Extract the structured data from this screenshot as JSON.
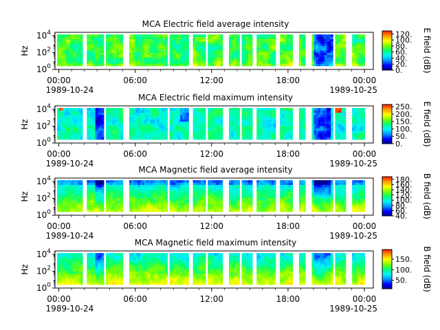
{
  "figure": {
    "colors": {
      "background": "#ffffff",
      "axis": "#000000",
      "colormap": [
        "#00008c",
        "#0000ff",
        "#0096ff",
        "#00f5f5",
        "#00ff78",
        "#78ff00",
        "#ffff00",
        "#ffa000",
        "#ff2000"
      ]
    },
    "time_axis": {
      "ticks": [
        "00:00",
        "06:00",
        "12:00",
        "18:00",
        "00:00"
      ],
      "start_date": "1989-10-24",
      "end_date": "1989-10-25",
      "range_hours": [
        -0.3,
        24.7
      ]
    },
    "y_axis": {
      "label": "Hz",
      "scale": "log",
      "range_log10": [
        0,
        4.4
      ],
      "tick_exponents": [
        0,
        2,
        4
      ]
    },
    "data_gaps_hours": [
      [
        1.9,
        2.2
      ],
      [
        3.55,
        3.7
      ],
      [
        5.1,
        5.6
      ],
      [
        8.55,
        8.75
      ],
      [
        10.2,
        10.55
      ],
      [
        11.5,
        11.65
      ],
      [
        12.9,
        13.3
      ],
      [
        14.15,
        14.3
      ],
      [
        15.2,
        15.6
      ],
      [
        17.1,
        17.35
      ],
      [
        18.45,
        18.8
      ],
      [
        19.35,
        19.85
      ],
      [
        21.5,
        21.75
      ],
      [
        22.55,
        23.1
      ]
    ],
    "coverage_hours": [
      -0.1,
      24.0
    ],
    "panels": [
      {
        "title": "MCA  Electric field average intensity",
        "cbar_label": "E field (dB)",
        "cbar_range": [
          0,
          130
        ],
        "cbar_ticks": [
          "0.",
          "20.",
          "40.",
          "60.",
          "80.",
          "100.",
          "120."
        ],
        "style": "e-avg"
      },
      {
        "title": "MCA  Electric field maximum intensity",
        "cbar_label": "E field (dB)",
        "cbar_range": [
          0,
          265
        ],
        "cbar_ticks": [
          "0.",
          "50.",
          "100.",
          "150.",
          "200.",
          "250."
        ],
        "style": "e-max"
      },
      {
        "title": "MCA  Magnetic field average intensity",
        "cbar_label": "B field (dB)",
        "cbar_range": [
          40,
          190
        ],
        "cbar_ticks": [
          "40.",
          "60.",
          "80.",
          "100.",
          "120.",
          "140.",
          "160.",
          "180."
        ],
        "style": "b-avg"
      },
      {
        "title": "MCA  Magnetic field maximum intensity",
        "cbar_label": "B field (dB)",
        "cbar_range": [
          10,
          195
        ],
        "cbar_ticks": [
          "50.",
          "100.",
          "150."
        ],
        "style": "b-max"
      }
    ]
  }
}
